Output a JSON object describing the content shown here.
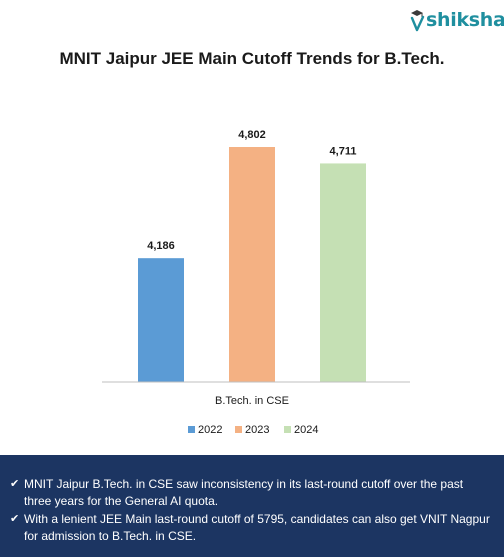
{
  "brand": {
    "name": "shiksha",
    "logo_color": "#1f8f9f"
  },
  "chart_data": {
    "type": "bar",
    "title": "MNIT Jaipur JEE Main Cutoff Trends for B.Tech.",
    "categories": [
      "B.Tech. in CSE"
    ],
    "series": [
      {
        "name": "2022",
        "values": [
          4186
        ],
        "labels": [
          "4,186"
        ],
        "color": "#5b9bd5"
      },
      {
        "name": "2023",
        "values": [
          4802
        ],
        "labels": [
          "4,802"
        ],
        "color": "#f4b183"
      },
      {
        "name": "2024",
        "values": [
          4711
        ],
        "labels": [
          "4,711"
        ],
        "color": "#c5e0b4"
      }
    ],
    "xlabel": "",
    "ylabel": "",
    "ylim": [
      3500,
      5000
    ],
    "grid": false,
    "legend": "bottom"
  },
  "notes": {
    "bullet_icon": "checkmark-icon",
    "items": [
      "MNIT Jaipur B.Tech. in CSE saw inconsistency in its last-round cutoff over the past three years for the General AI quota.",
      "With a lenient JEE Main last-round cutoff of 5795, candidates can also get VNIT Nagpur for admission to B.Tech. in CSE."
    ],
    "background": "#1c3562"
  }
}
